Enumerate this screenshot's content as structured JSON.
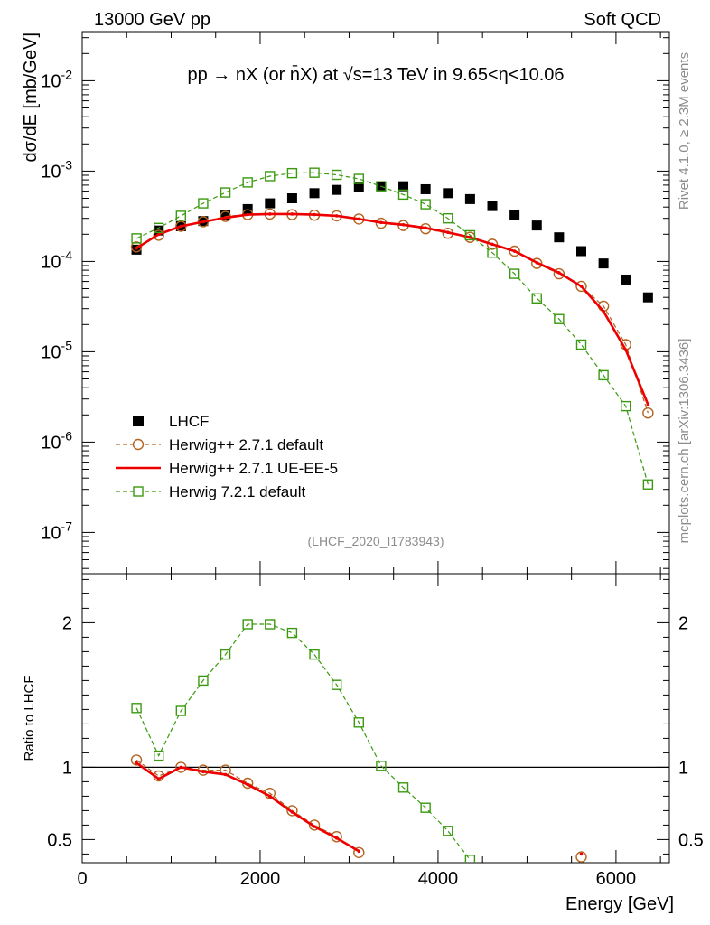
{
  "header": {
    "left": "13000 GeV pp",
    "right": "Soft QCD"
  },
  "side": {
    "rivet": "Rivet 4.1.0, ≥ 2.3M events",
    "source": "mcplots.cern.ch [arXiv:1306.3436]"
  },
  "colors": {
    "data": "#000000",
    "herwigpp_default": "#b2631f",
    "ueee5": "#ee0000",
    "herwig7": "#3a9a0f"
  },
  "chart_data": [
    {
      "type": "scatter",
      "panel": "main",
      "title": "pp → nX (or n̄X) at √s=13 TeV in 9.65<η<10.06",
      "analysis_tag": "(LHCF_2020_I1783943)",
      "xlabel": "Energy [GeV]",
      "ylabel": "dσ/dE [mb/GeV]",
      "yscale": "log",
      "xlim": [
        0,
        6600
      ],
      "ylim": [
        3.5e-08,
        0.035
      ],
      "y_ticks": [
        {
          "value": 1e-07,
          "label": "10-7"
        },
        {
          "value": 1e-06,
          "label": "10-6"
        },
        {
          "value": 1e-05,
          "label": "10-5"
        },
        {
          "value": 0.0001,
          "label": "10-4"
        },
        {
          "value": 0.001,
          "label": "10-3"
        },
        {
          "value": 0.01,
          "label": "10-2"
        }
      ],
      "x": [
        610,
        860,
        1110,
        1360,
        1610,
        1860,
        2110,
        2360,
        2610,
        2860,
        3110,
        3360,
        3610,
        3860,
        4110,
        4360,
        4610,
        4860,
        5110,
        5360,
        5610,
        5860,
        6110,
        6360
      ],
      "series": [
        {
          "name": "LHCF",
          "style": "data",
          "values": [
            0.000135,
            0.00022,
            0.000245,
            0.00028,
            0.00033,
            0.00038,
            0.00044,
            0.0005,
            0.00057,
            0.00062,
            0.00066,
            0.00068,
            0.00068,
            0.00063,
            0.00057,
            0.00049,
            0.00041,
            0.00033,
            0.00025,
            0.000185,
            0.00013,
            9.5e-05,
            6.3e-05,
            4e-05
          ]
        },
        {
          "name": "Herwig++ 2.7.1 default",
          "style": "circle",
          "values": [
            0.000145,
            0.000195,
            0.000245,
            0.000275,
            0.000315,
            0.00033,
            0.000335,
            0.00033,
            0.000325,
            0.00032,
            0.000295,
            0.000265,
            0.00025,
            0.00023,
            0.000205,
            0.000185,
            0.000155,
            0.00013,
            9.5e-05,
            7.3e-05,
            5.3e-05,
            3.2e-05,
            1.2e-05,
            2.1e-06
          ]
        },
        {
          "name": "Herwig++ 2.7.1 UE-EE-5",
          "style": "line",
          "values": [
            0.00014,
            0.0002,
            0.000245,
            0.000275,
            0.000305,
            0.00033,
            0.000335,
            0.000335,
            0.00033,
            0.00032,
            0.000295,
            0.00027,
            0.000255,
            0.000235,
            0.00021,
            0.000185,
            0.000155,
            0.00013,
            9.7e-05,
            7.5e-05,
            5.3e-05,
            2.8e-05,
            1.05e-05,
            2.6e-06
          ]
        },
        {
          "name": "Herwig 7.2.1 default",
          "style": "square",
          "values": [
            0.00018,
            0.000235,
            0.00032,
            0.00044,
            0.00058,
            0.00075,
            0.00088,
            0.00095,
            0.00096,
            0.00091,
            0.00082,
            0.00068,
            0.00055,
            0.00043,
            0.0003,
            0.000195,
            0.000125,
            7.3e-05,
            3.9e-05,
            2.3e-05,
            1.2e-05,
            5.5e-06,
            2.5e-06,
            3.4e-07
          ]
        }
      ],
      "legend": [
        "LHCF",
        "Herwig++ 2.7.1 default",
        "Herwig++ 2.7.1 UE-EE-5",
        "Herwig 7.2.1 default"
      ]
    },
    {
      "type": "line",
      "panel": "ratio",
      "ylabel": "Ratio to LHCF",
      "xlabel": "Energy [GeV]",
      "xlim": [
        0,
        6600
      ],
      "ylim": [
        0.34,
        2.34
      ],
      "x_ticks": [
        "0",
        "2000",
        "4000",
        "6000"
      ],
      "y_ticks": [
        "0.5",
        "1",
        "2"
      ],
      "x": [
        610,
        860,
        1110,
        1360,
        1610,
        1860,
        2110,
        2360,
        2610,
        2860,
        3110,
        3360,
        3610,
        3860,
        4110,
        4360,
        5610
      ],
      "series": [
        {
          "name": "Herwig++ 2.7.1 default",
          "style": "circle",
          "values": [
            1.05,
            0.94,
            1.0,
            0.98,
            0.98,
            0.89,
            0.82,
            0.7,
            0.6,
            0.52,
            0.41,
            null,
            null,
            null,
            null,
            null,
            0.38
          ]
        },
        {
          "name": "Herwig++ 2.7.1 UE-EE-5",
          "style": "line",
          "values": [
            1.03,
            0.92,
            1.0,
            0.97,
            0.95,
            0.88,
            0.8,
            0.69,
            0.59,
            0.51,
            0.42,
            null,
            null,
            null,
            null,
            null,
            0.4
          ]
        },
        {
          "name": "Herwig 7.2.1 default",
          "style": "square",
          "values": [
            1.41,
            1.08,
            1.39,
            1.6,
            1.78,
            1.99,
            1.99,
            1.93,
            1.78,
            1.57,
            1.31,
            1.01,
            0.86,
            0.72,
            0.56,
            0.36,
            null
          ]
        }
      ]
    }
  ]
}
